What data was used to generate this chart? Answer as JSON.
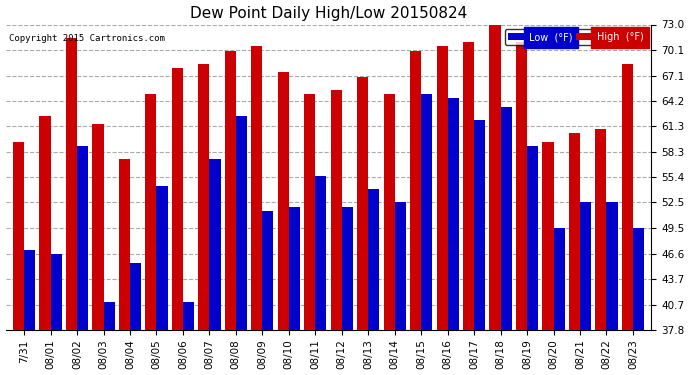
{
  "title": "Dew Point Daily High/Low 20150824",
  "copyright": "Copyright 2015 Cartronics.com",
  "dates": [
    "7/31",
    "08/01",
    "08/02",
    "08/03",
    "08/04",
    "08/05",
    "08/06",
    "08/07",
    "08/08",
    "08/09",
    "08/10",
    "08/11",
    "08/12",
    "08/13",
    "08/14",
    "08/15",
    "08/16",
    "08/17",
    "08/18",
    "08/19",
    "08/20",
    "08/21",
    "08/22",
    "08/23"
  ],
  "low": [
    47.0,
    46.6,
    59.0,
    41.0,
    45.5,
    54.4,
    41.0,
    57.5,
    62.5,
    51.5,
    52.0,
    55.5,
    52.0,
    54.0,
    52.5,
    65.0,
    64.5,
    62.0,
    63.5,
    59.0,
    49.5,
    52.5,
    52.5,
    49.5
  ],
  "high": [
    59.5,
    62.5,
    71.5,
    61.5,
    57.5,
    65.0,
    68.0,
    68.5,
    70.0,
    70.5,
    67.5,
    65.0,
    65.5,
    67.0,
    65.0,
    70.0,
    70.5,
    71.0,
    73.0,
    71.0,
    59.5,
    60.5,
    61.0,
    68.5
  ],
  "low_color": "#0000cc",
  "high_color": "#cc0000",
  "bg_color": "#ffffff",
  "plot_bg_color": "#ffffff",
  "grid_color": "#aaaaaa",
  "yticks": [
    37.8,
    40.7,
    43.7,
    46.6,
    49.5,
    52.5,
    55.4,
    58.3,
    61.3,
    64.2,
    67.1,
    70.1,
    73.0
  ],
  "ylim_low": 37.8,
  "ylim_high": 73.0,
  "bar_width": 0.42,
  "bar_bottom": 37.8
}
